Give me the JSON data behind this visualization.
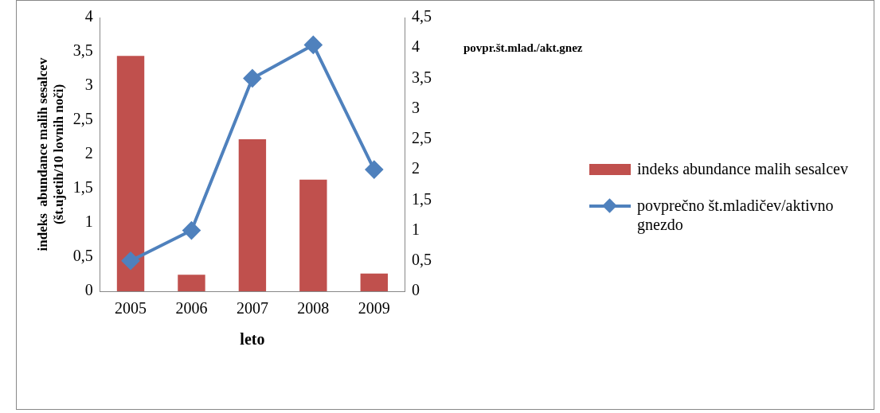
{
  "chart_data": {
    "type": "bar",
    "xlabel": "leto",
    "ylabel": "indeks  abundance malih sesalcev\n(št.ujetih/10 lovnih noči)",
    "y2label": "povpr.št.mlad./akt.gnez",
    "categories": [
      "2005",
      "2006",
      "2007",
      "2008",
      "2009"
    ],
    "series": [
      {
        "name": "indeks abundance malih sesalcev",
        "color": "#c0504d",
        "values": [
          3.44,
          0.24,
          2.22,
          1.63,
          0.26
        ]
      },
      {
        "name": "povprečno št.mladičev/aktivno gnezdo",
        "type": "line",
        "axis": "y2",
        "color": "#4f81bd",
        "marker": "diamond",
        "values": [
          0.5,
          1.0,
          3.5,
          4.05,
          2.0
        ]
      }
    ],
    "ylim": [
      0,
      4
    ],
    "yticks": [
      0,
      {
        "value": 0.5,
        "label": "0,5"
      },
      1,
      {
        "value": 1.5,
        "label": "1,5"
      },
      2,
      {
        "value": 2.5,
        "label": "2,5"
      },
      3,
      {
        "value": 3.5,
        "label": "3,5"
      },
      4
    ],
    "y2lim": [
      0,
      4.5
    ],
    "y2ticks": [
      0,
      {
        "value": 0.5,
        "label": "0,5"
      },
      1,
      {
        "value": 1.5,
        "label": "1,5"
      },
      2,
      {
        "value": 2.5,
        "label": "2,5"
      },
      3,
      {
        "value": 3.5,
        "label": "3,5"
      },
      4,
      {
        "value": 4.5,
        "label": "4,5"
      }
    ],
    "grid": false,
    "legend": "right"
  }
}
